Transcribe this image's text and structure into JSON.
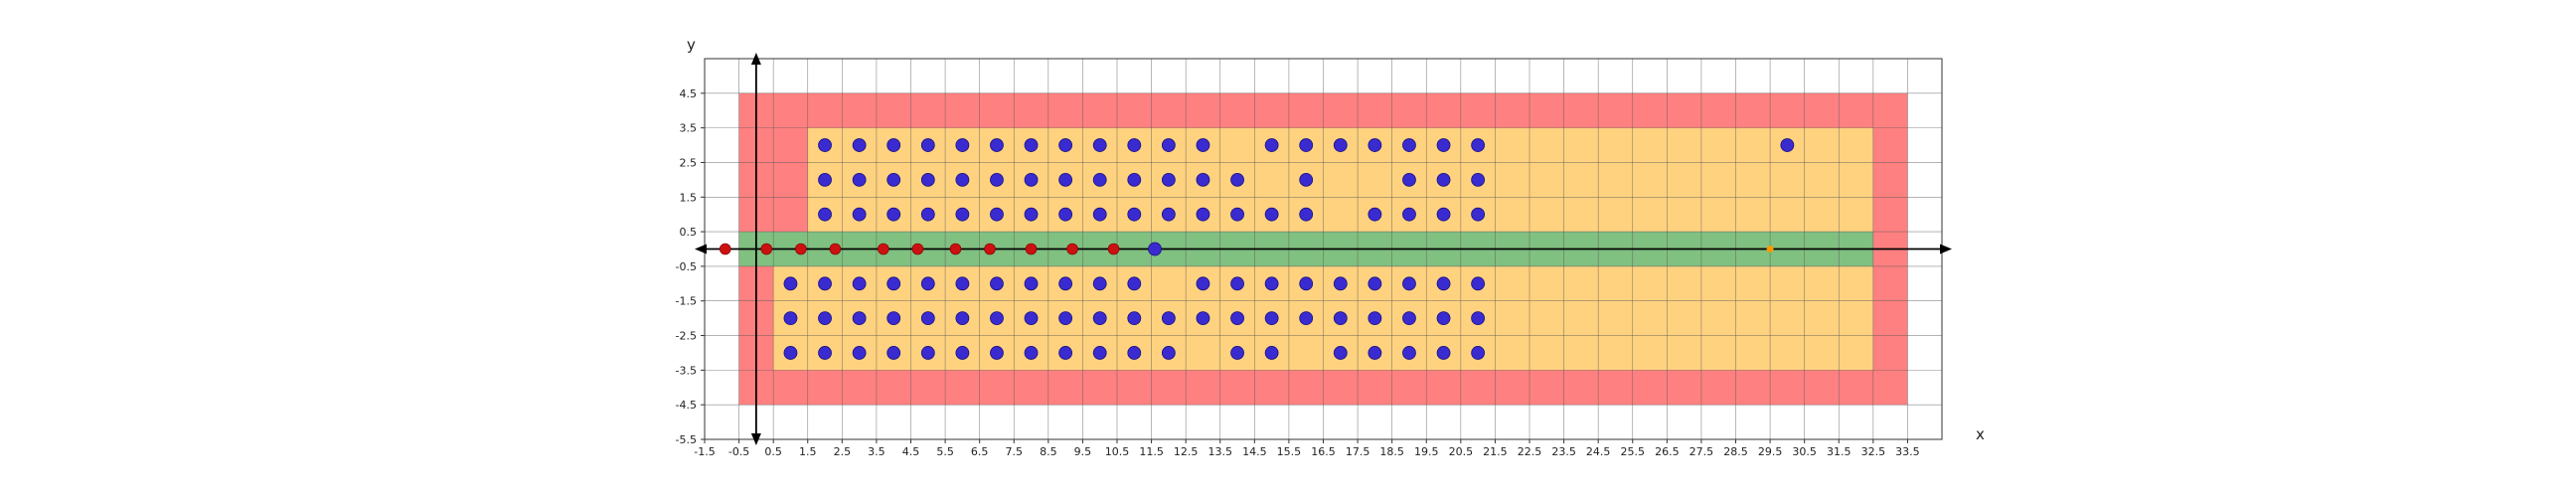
{
  "chart_data": {
    "type": "scatter",
    "title": "",
    "xlabel": "x",
    "ylabel": "y",
    "xlim": [
      -1.5,
      34.5
    ],
    "ylim": [
      -5.5,
      5.5
    ],
    "grid": true,
    "xticks": [
      "-1.5",
      "-0.5",
      "0.5",
      "1.5",
      "2.5",
      "3.5",
      "4.5",
      "5.5",
      "6.5",
      "7.5",
      "8.5",
      "9.5",
      "10.5",
      "11.5",
      "12.5",
      "13.5",
      "14.5",
      "15.5",
      "16.5",
      "17.5",
      "18.5",
      "19.5",
      "20.5",
      "21.5",
      "22.5",
      "23.5",
      "24.5",
      "25.5",
      "26.5",
      "27.5",
      "28.5",
      "29.5",
      "30.5",
      "31.5",
      "32.5",
      "33.5"
    ],
    "yticks": [
      "-5.5",
      "-4.5",
      "-3.5",
      "-2.5",
      "-1.5",
      "-0.5",
      "0.5",
      "1.5",
      "2.5",
      "3.5",
      "4.5"
    ],
    "colors": {
      "red_region": "#ff8080",
      "orange_region": "#ffd27f",
      "green_region": "#80c080",
      "blue_points": "#3a2bd0",
      "red_points": "#cc1111",
      "orange_point": "#ff9900",
      "grid": "#555555",
      "axis": "#000000"
    },
    "regions": [
      {
        "color": "red",
        "x": [
          -0.5,
          33.5
        ],
        "y": [
          -4.5,
          4.5
        ]
      },
      {
        "color": "orange",
        "x": [
          0.5,
          32.5
        ],
        "y": [
          -3.5,
          -0.5
        ]
      },
      {
        "color": "orange",
        "x": [
          1.5,
          32.5
        ],
        "y": [
          0.5,
          3.5
        ]
      },
      {
        "color": "green",
        "x": [
          -0.5,
          32.5
        ],
        "y": [
          -0.5,
          0.5
        ]
      }
    ],
    "blue_points": [
      [
        2,
        3
      ],
      [
        3,
        3
      ],
      [
        4,
        3
      ],
      [
        5,
        3
      ],
      [
        6,
        3
      ],
      [
        7,
        3
      ],
      [
        8,
        3
      ],
      [
        9,
        3
      ],
      [
        10,
        3
      ],
      [
        11,
        3
      ],
      [
        12,
        3
      ],
      [
        13,
        3
      ],
      [
        15,
        3
      ],
      [
        16,
        3
      ],
      [
        17,
        3
      ],
      [
        18,
        3
      ],
      [
        19,
        3
      ],
      [
        20,
        3
      ],
      [
        21,
        3
      ],
      [
        30,
        3
      ],
      [
        2,
        2
      ],
      [
        3,
        2
      ],
      [
        4,
        2
      ],
      [
        5,
        2
      ],
      [
        6,
        2
      ],
      [
        7,
        2
      ],
      [
        8,
        2
      ],
      [
        9,
        2
      ],
      [
        10,
        2
      ],
      [
        11,
        2
      ],
      [
        12,
        2
      ],
      [
        13,
        2
      ],
      [
        14,
        2
      ],
      [
        16,
        2
      ],
      [
        19,
        2
      ],
      [
        20,
        2
      ],
      [
        21,
        2
      ],
      [
        2,
        1
      ],
      [
        3,
        1
      ],
      [
        4,
        1
      ],
      [
        5,
        1
      ],
      [
        6,
        1
      ],
      [
        7,
        1
      ],
      [
        8,
        1
      ],
      [
        9,
        1
      ],
      [
        10,
        1
      ],
      [
        11,
        1
      ],
      [
        12,
        1
      ],
      [
        13,
        1
      ],
      [
        14,
        1
      ],
      [
        15,
        1
      ],
      [
        16,
        1
      ],
      [
        18,
        1
      ],
      [
        19,
        1
      ],
      [
        20,
        1
      ],
      [
        21,
        1
      ],
      [
        11.6,
        0
      ],
      [
        1,
        -1
      ],
      [
        2,
        -1
      ],
      [
        3,
        -1
      ],
      [
        4,
        -1
      ],
      [
        5,
        -1
      ],
      [
        6,
        -1
      ],
      [
        7,
        -1
      ],
      [
        8,
        -1
      ],
      [
        9,
        -1
      ],
      [
        10,
        -1
      ],
      [
        11,
        -1
      ],
      [
        13,
        -1
      ],
      [
        14,
        -1
      ],
      [
        15,
        -1
      ],
      [
        16,
        -1
      ],
      [
        17,
        -1
      ],
      [
        18,
        -1
      ],
      [
        19,
        -1
      ],
      [
        20,
        -1
      ],
      [
        21,
        -1
      ],
      [
        1,
        -2
      ],
      [
        2,
        -2
      ],
      [
        3,
        -2
      ],
      [
        4,
        -2
      ],
      [
        5,
        -2
      ],
      [
        6,
        -2
      ],
      [
        7,
        -2
      ],
      [
        8,
        -2
      ],
      [
        9,
        -2
      ],
      [
        10,
        -2
      ],
      [
        11,
        -2
      ],
      [
        12,
        -2
      ],
      [
        13,
        -2
      ],
      [
        14,
        -2
      ],
      [
        15,
        -2
      ],
      [
        16,
        -2
      ],
      [
        17,
        -2
      ],
      [
        18,
        -2
      ],
      [
        19,
        -2
      ],
      [
        20,
        -2
      ],
      [
        21,
        -2
      ],
      [
        1,
        -3
      ],
      [
        2,
        -3
      ],
      [
        3,
        -3
      ],
      [
        4,
        -3
      ],
      [
        5,
        -3
      ],
      [
        6,
        -3
      ],
      [
        7,
        -3
      ],
      [
        8,
        -3
      ],
      [
        9,
        -3
      ],
      [
        10,
        -3
      ],
      [
        11,
        -3
      ],
      [
        12,
        -3
      ],
      [
        14,
        -3
      ],
      [
        15,
        -3
      ],
      [
        17,
        -3
      ],
      [
        18,
        -3
      ],
      [
        19,
        -3
      ],
      [
        20,
        -3
      ],
      [
        21,
        -3
      ]
    ],
    "red_points": [
      [
        -0.9,
        0
      ],
      [
        0.3,
        0
      ],
      [
        1.3,
        0
      ],
      [
        2.3,
        0
      ],
      [
        3.7,
        0
      ],
      [
        4.7,
        0
      ],
      [
        5.8,
        0
      ],
      [
        6.8,
        0
      ],
      [
        8.0,
        0
      ],
      [
        9.2,
        0
      ],
      [
        10.4,
        0
      ]
    ],
    "orange_points": [
      [
        29.5,
        0
      ]
    ]
  }
}
